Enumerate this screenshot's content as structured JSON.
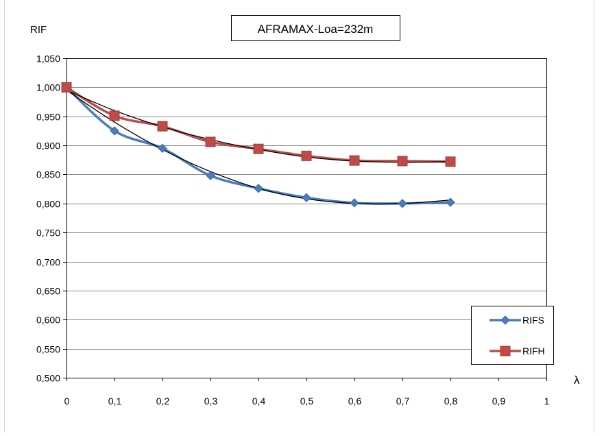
{
  "chart_data": {
    "type": "line",
    "title": "AFRAMAX-Loa=232m",
    "ylabel": "RIF",
    "xlabel": "λ",
    "xlim": [
      0,
      1
    ],
    "ylim": [
      0.5,
      1.05
    ],
    "x_ticks": [
      "0",
      "0,1",
      "0,2",
      "0,3",
      "0,4",
      "0,5",
      "0,6",
      "0,7",
      "0,8",
      "0,9",
      "1"
    ],
    "y_ticks": [
      "0,500",
      "0,550",
      "0,600",
      "0,650",
      "0,700",
      "0,750",
      "0,800",
      "0,850",
      "0,900",
      "0,950",
      "1,000",
      "1,050"
    ],
    "grid": {
      "horizontal": true,
      "vertical": false
    },
    "legend_position": "bottom-right",
    "series": [
      {
        "name": "RIFS",
        "marker": "diamond",
        "color": "#4a7ebb",
        "x": [
          0,
          0.1,
          0.2,
          0.3,
          0.4,
          0.5,
          0.6,
          0.7,
          0.8
        ],
        "values": [
          1.0,
          0.925,
          0.895,
          0.848,
          0.826,
          0.81,
          0.801,
          0.8,
          0.802
        ]
      },
      {
        "name": "RIFH",
        "marker": "square",
        "color": "#be4b48",
        "x": [
          0,
          0.1,
          0.2,
          0.3,
          0.4,
          0.5,
          0.6,
          0.7,
          0.8
        ],
        "values": [
          1.0,
          0.951,
          0.933,
          0.906,
          0.894,
          0.882,
          0.874,
          0.873,
          0.872
        ]
      }
    ],
    "trendlines": [
      {
        "series": "RIFS",
        "color": "#000000",
        "x": [
          0,
          0.1,
          0.2,
          0.3,
          0.4,
          0.5,
          0.6,
          0.7,
          0.8
        ],
        "values": [
          0.995,
          0.94,
          0.893,
          0.855,
          0.826,
          0.808,
          0.8,
          0.8,
          0.806
        ]
      },
      {
        "series": "RIFH",
        "color": "#000000",
        "x": [
          0,
          0.1,
          0.2,
          0.3,
          0.4,
          0.5,
          0.6,
          0.7,
          0.8
        ],
        "values": [
          0.995,
          0.96,
          0.932,
          0.91,
          0.893,
          0.88,
          0.873,
          0.871,
          0.872
        ]
      }
    ]
  }
}
